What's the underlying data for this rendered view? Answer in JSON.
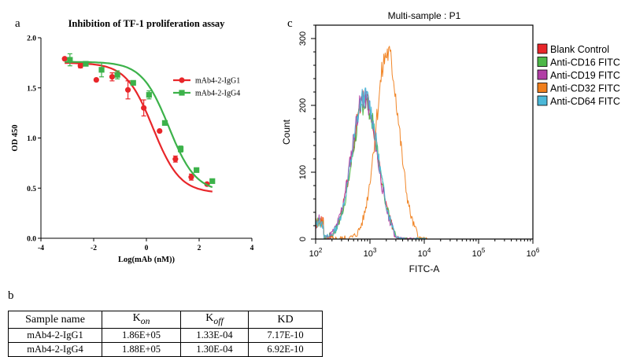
{
  "chart_data": [
    {
      "panel": "a",
      "type": "line",
      "title": "Inhibition of TF-1 proliferation assay",
      "xlabel": "Log(mAb (nM))",
      "ylabel": "OD 450",
      "xlim": [
        -4,
        4
      ],
      "ylim": [
        0.0,
        2.0
      ],
      "xticks": [
        "-4",
        "-2",
        "0",
        "2",
        "4"
      ],
      "yticks": [
        "0.0",
        "0.5",
        "1.0",
        "1.5",
        "2.0"
      ],
      "legend_position": "top-right",
      "series": [
        {
          "name": "mAb4-2-IgG1",
          "color": "#e8262a",
          "marker": "circle",
          "x": [
            -3.1,
            -2.5,
            -1.9,
            -1.3,
            -0.7,
            -0.1,
            0.5,
            1.1,
            1.7,
            2.3
          ],
          "y": [
            1.79,
            1.72,
            1.58,
            1.61,
            1.48,
            1.3,
            1.07,
            0.79,
            0.61,
            0.54
          ],
          "err": [
            0.01,
            0.02,
            0.0,
            0.04,
            0.09,
            0.08,
            0.0,
            0.03,
            0.03,
            0.0
          ],
          "fit": {
            "top": 1.75,
            "bottom": 0.45,
            "logIC50": 0.25,
            "hill": 0.85
          }
        },
        {
          "name": "mAb4-2-IgG4",
          "color": "#3cb24a",
          "marker": "square",
          "x": [
            -2.9,
            -2.3,
            -1.7,
            -1.1,
            -0.5,
            0.1,
            0.7,
            1.3,
            1.9,
            2.5
          ],
          "y": [
            1.78,
            1.74,
            1.68,
            1.63,
            1.55,
            1.43,
            1.15,
            0.89,
            0.68,
            0.57
          ],
          "err": [
            0.06,
            0.0,
            0.07,
            0.04,
            0.0,
            0.04,
            0.0,
            0.03,
            0.0,
            0.0
          ],
          "fit": {
            "top": 1.76,
            "bottom": 0.46,
            "logIC50": 0.85,
            "hill": 0.85
          }
        }
      ]
    },
    {
      "panel": "c",
      "type": "area",
      "title": "Multi-sample : P1",
      "xlabel": "FITC-A",
      "ylabel": "Count",
      "log_x": true,
      "xlim": [
        100,
        1000000
      ],
      "ylim": [
        0,
        320
      ],
      "xticks": [
        "10",
        "10",
        "10",
        "10",
        "10"
      ],
      "xtick_exponents": [
        "2",
        "3",
        "4",
        "5",
        "6"
      ],
      "yticks": [
        "0",
        "100",
        "200",
        "300"
      ],
      "legend_position": "right",
      "series": [
        {
          "name": "Blank Control",
          "color": "#e8262a",
          "peak_x": 800,
          "peak_y": 210,
          "width_decades": 0.42,
          "seed": 3
        },
        {
          "name": "Anti-CD16 FITC",
          "color": "#4db848",
          "peak_x": 820,
          "peak_y": 205,
          "width_decades": 0.42,
          "seed": 7
        },
        {
          "name": "Anti-CD19 FITC",
          "color": "#b23fa6",
          "peak_x": 780,
          "peak_y": 212,
          "width_decades": 0.42,
          "seed": 11
        },
        {
          "name": "Anti-CD32 FITC",
          "color": "#f07f1c",
          "peak_x": 2100,
          "peak_y": 278,
          "width_decades": 0.38,
          "seed": 5
        },
        {
          "name": "Anti-CD64 FITC",
          "color": "#4bb8d8",
          "peak_x": 810,
          "peak_y": 214,
          "width_decades": 0.42,
          "seed": 13
        }
      ]
    }
  ],
  "panels": {
    "a": "a",
    "b": "b",
    "c": "c"
  },
  "table": {
    "headers": [
      "Sample name",
      "K",
      "K",
      "KD"
    ],
    "header_subscripts": [
      "",
      "on",
      "off",
      ""
    ],
    "rows": [
      [
        "mAb4-2-IgG1",
        "1.86E+05",
        "1.33E-04",
        "7.17E-10"
      ],
      [
        "mAb4-2-IgG4",
        "1.88E+05",
        "1.30E-04",
        "6.92E-10"
      ]
    ]
  }
}
